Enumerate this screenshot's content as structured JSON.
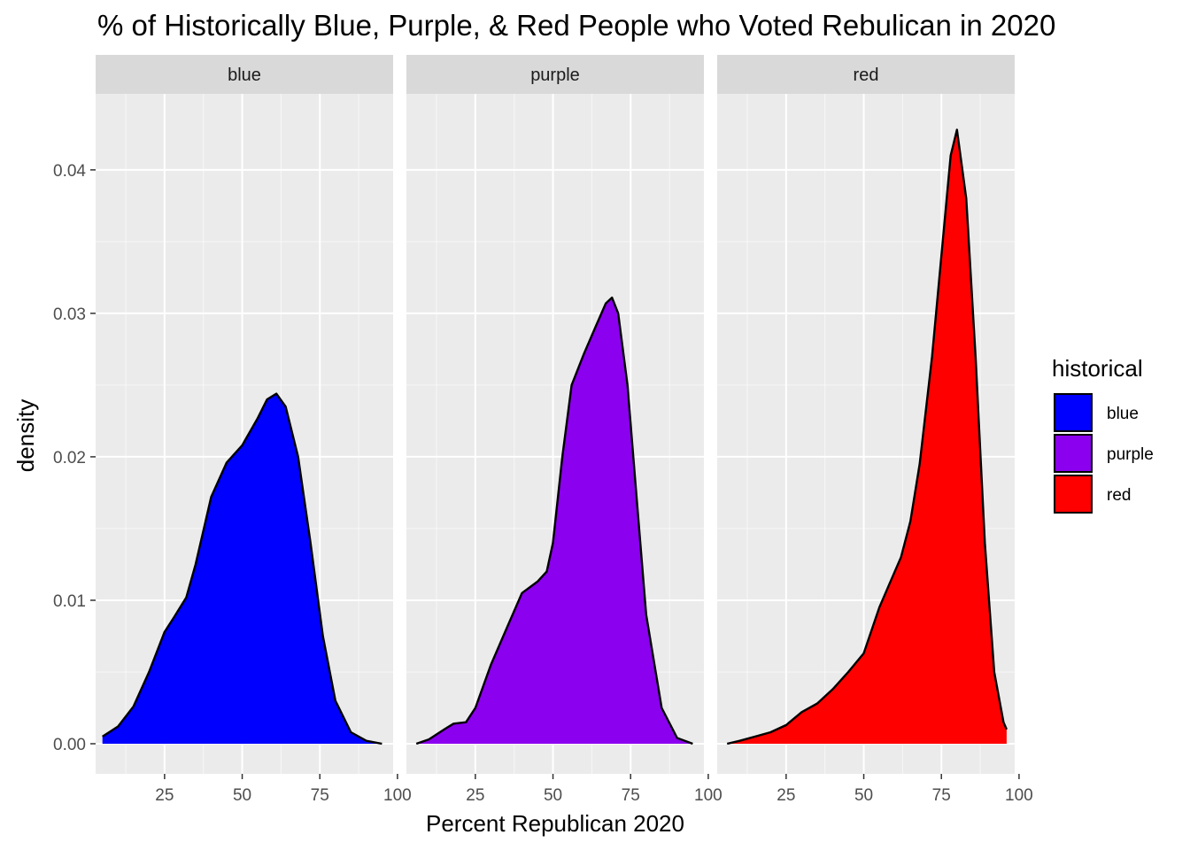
{
  "chart_data": {
    "type": "area",
    "title": "% of Historically Blue, Purple, & Red People who Voted Rebulican in 2020",
    "xlabel": "Percent Republican 2020",
    "ylabel": "density",
    "xlim": [
      2.8,
      98.6
    ],
    "ylim": [
      -0.0021,
      0.0453
    ],
    "x_ticks": [
      25,
      50,
      75,
      100
    ],
    "y_ticks": [
      0.0,
      0.01,
      0.02,
      0.03,
      0.04
    ],
    "y_tick_labels": [
      "0.00",
      "0.01",
      "0.02",
      "0.03",
      "0.04"
    ],
    "grid": true,
    "legend": {
      "title": "historical",
      "position": "right",
      "entries": [
        {
          "label": "blue",
          "color": "#0000FF"
        },
        {
          "label": "purple",
          "color": "#8B00EE"
        },
        {
          "label": "red",
          "color": "#FF0000"
        }
      ]
    },
    "facets": [
      {
        "label": "blue",
        "color": "#0000FF",
        "x": [
          5,
          10,
          15,
          20,
          25,
          28,
          32,
          35,
          40,
          45,
          50,
          55,
          58,
          61,
          64,
          68,
          72,
          76,
          80,
          85,
          90,
          95
        ],
        "y": [
          0.0005,
          0.0012,
          0.0026,
          0.005,
          0.0078,
          0.0088,
          0.0102,
          0.0125,
          0.0172,
          0.0196,
          0.0208,
          0.0227,
          0.024,
          0.0244,
          0.0235,
          0.02,
          0.014,
          0.0075,
          0.003,
          0.0008,
          0.0002,
          0.0
        ]
      },
      {
        "label": "purple",
        "color": "#8B00EE",
        "x": [
          6,
          10,
          15,
          18,
          22,
          25,
          30,
          35,
          40,
          45,
          48,
          50,
          53,
          56,
          60,
          64,
          67,
          69,
          71,
          74,
          77,
          80,
          85,
          90,
          95
        ],
        "y": [
          0.0,
          0.0003,
          0.001,
          0.0014,
          0.0015,
          0.0025,
          0.0055,
          0.008,
          0.0105,
          0.0113,
          0.012,
          0.014,
          0.02,
          0.025,
          0.0272,
          0.0292,
          0.0307,
          0.0311,
          0.03,
          0.025,
          0.017,
          0.009,
          0.0025,
          0.0004,
          0.0
        ]
      },
      {
        "label": "red",
        "color": "#FF0000",
        "x": [
          6,
          10,
          15,
          20,
          25,
          30,
          35,
          40,
          45,
          50,
          55,
          58,
          62,
          65,
          68,
          72,
          75,
          78,
          80,
          83,
          86,
          89,
          92,
          95,
          96
        ],
        "y": [
          0.0,
          0.0002,
          0.0005,
          0.0008,
          0.0013,
          0.0022,
          0.0028,
          0.0038,
          0.005,
          0.0063,
          0.0095,
          0.011,
          0.013,
          0.0155,
          0.0195,
          0.027,
          0.034,
          0.041,
          0.0428,
          0.038,
          0.027,
          0.014,
          0.005,
          0.0015,
          0.001
        ]
      }
    ]
  },
  "colors": {
    "panel_bg": "#EBEBEB",
    "strip_bg": "#D9D9D9",
    "grid": "#FFFFFF",
    "outline": "#000000"
  }
}
